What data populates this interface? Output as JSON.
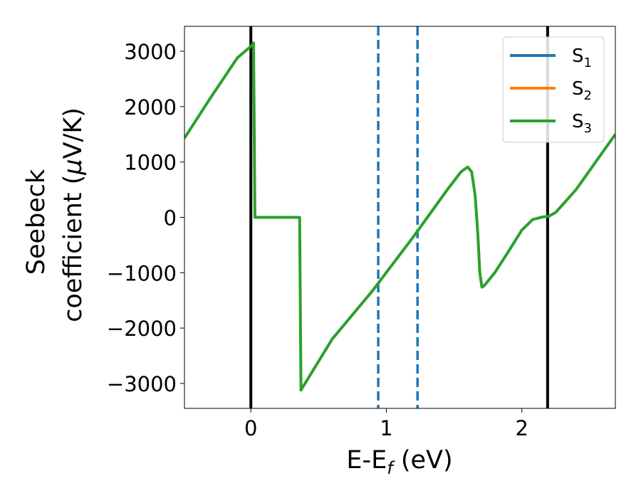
{
  "chart_data": {
    "type": "line",
    "xlabel": "E-E",
    "xlabel_sub": "f",
    "xlabel_unit": " (eV)",
    "ylabel_line1": "Seebeck",
    "ylabel_line2": "coefficient  (",
    "ylabel_mu": "μ",
    "ylabel_unit": "V/K)",
    "xlim": [
      -0.49,
      2.69
    ],
    "ylim": [
      -3450,
      3450
    ],
    "xticks": [
      0,
      1,
      2
    ],
    "xtick_labels": [
      "0",
      "1",
      "2"
    ],
    "yticks": [
      3000,
      2000,
      1000,
      0,
      -1000,
      -2000,
      -3000
    ],
    "ytick_labels": [
      "3000",
      "2000",
      "1000",
      "0",
      "−1000",
      "−2000",
      "−3000"
    ],
    "grid": false,
    "legend_position": "top-right",
    "series": [
      {
        "name": "S",
        "sub": "1",
        "color": "#1f77b4"
      },
      {
        "name": "S",
        "sub": "2",
        "color": "#ff7f0e"
      },
      {
        "name": "S",
        "sub": "3",
        "color": "#2ca02c",
        "points": [
          [
            -0.49,
            1430
          ],
          [
            -0.3,
            2150
          ],
          [
            -0.1,
            2880
          ],
          [
            0.01,
            3110
          ],
          [
            0.02,
            3150
          ],
          [
            0.03,
            0
          ],
          [
            0.36,
            0
          ],
          [
            0.37,
            -3120
          ],
          [
            0.6,
            -2200
          ],
          [
            0.9,
            -1320
          ],
          [
            1.2,
            -350
          ],
          [
            1.45,
            500
          ],
          [
            1.55,
            820
          ],
          [
            1.6,
            910
          ],
          [
            1.63,
            820
          ],
          [
            1.655,
            400
          ],
          [
            1.675,
            -300
          ],
          [
            1.69,
            -1000
          ],
          [
            1.705,
            -1260
          ],
          [
            1.72,
            -1240
          ],
          [
            1.8,
            -1000
          ],
          [
            1.9,
            -620
          ],
          [
            2.0,
            -230
          ],
          [
            2.08,
            -40
          ],
          [
            2.15,
            5
          ],
          [
            2.2,
            20
          ],
          [
            2.25,
            90
          ],
          [
            2.4,
            500
          ],
          [
            2.55,
            1020
          ],
          [
            2.69,
            1500
          ]
        ]
      }
    ],
    "vlines": [
      {
        "x": 0.0,
        "color": "#000000",
        "style": "solid"
      },
      {
        "x": 2.19,
        "color": "#000000",
        "style": "solid"
      },
      {
        "x": 0.94,
        "color": "#1f77b4",
        "style": "dashed"
      },
      {
        "x": 1.23,
        "color": "#1f77b4",
        "style": "dashed"
      }
    ]
  }
}
